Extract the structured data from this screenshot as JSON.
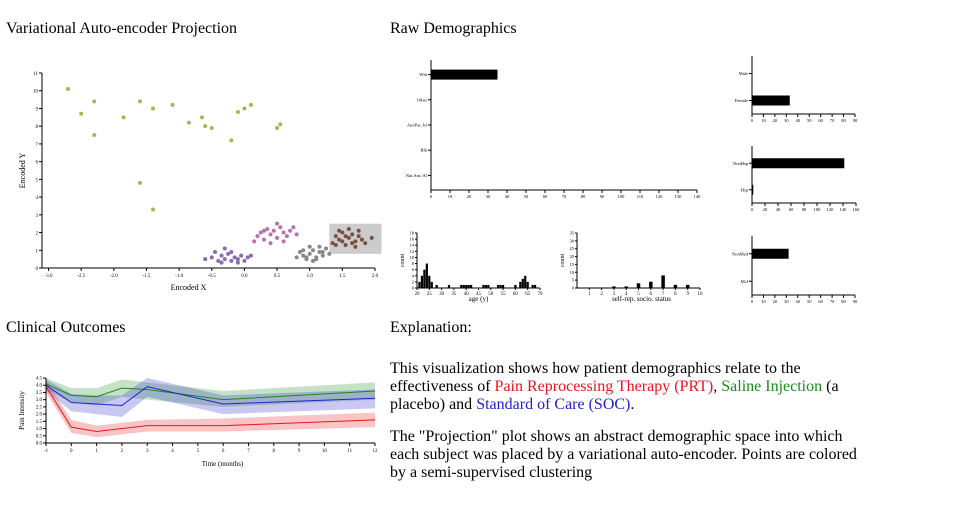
{
  "headings": {
    "vae": "Variational Auto-encoder Projection",
    "raw": "Raw Demographics",
    "clinical": "Clinical Outcomes",
    "explanation": "Explanation:"
  },
  "explanation": {
    "p1_a": "This visualization shows how patient demographics relate to the effectiveness of ",
    "prt": "Pain Reprocessing Therapy (PRT)",
    "p1_b": ", ",
    "saline": "Saline Injection",
    "p1_c": " (a placebo) and ",
    "soc": "Standard of Care (SOC)",
    "p1_d": ".",
    "p2": "The \"Projection\" plot shows an abstract demographic space into which each subject was placed by a variational auto-encoder. Points are colored by a semi-supervised clustering"
  },
  "colors": {
    "prt": "#e8141a",
    "saline": "#1a8a1a",
    "soc": "#2222cc",
    "cluster_green": "#a4b55a",
    "cluster_purple": "#8a6ab0",
    "cluster_pink": "#b870b0",
    "cluster_gray": "#888888",
    "cluster_brown": "#7a5040",
    "selection": "#cccccc"
  },
  "chart_data": [
    {
      "type": "scatter",
      "id": "vae",
      "xlabel": "Encoded X",
      "ylabel": "Encoded Y",
      "xlim": [
        -2.5,
        2.0
      ],
      "ylim": [
        0,
        11
      ],
      "xticks": [
        "-2.5",
        "-2.0",
        "-1.5",
        "-1.0",
        "-0.5",
        "0.0",
        "0.5",
        "1.0",
        "1.5",
        "2.0"
      ],
      "xtick_values": [
        -2.5,
        -2.0,
        -1.5,
        -1.0,
        -0.5,
        0.0,
        0.5,
        1.0,
        1.5,
        2.0
      ],
      "xtick_minor": [
        "-3.0",
        "-2.5",
        "-2.0",
        "-1.5",
        "-1.0",
        "-0.5",
        "0.0",
        "0.5",
        "1.0",
        "1.5",
        "2.0"
      ],
      "yticks": [
        "0",
        "1",
        "2",
        "3",
        "4",
        "5",
        "6",
        "7",
        "8",
        "9",
        "10",
        "11"
      ],
      "selection": {
        "x": [
          1.3,
          2.1
        ],
        "y": [
          0.8,
          2.5
        ]
      },
      "series": [
        {
          "color": "cluster_green",
          "points": [
            [
              -2.7,
              10.1
            ],
            [
              -2.5,
              8.7
            ],
            [
              -2.3,
              9.4
            ],
            [
              -2.3,
              7.5
            ],
            [
              -1.85,
              8.5
            ],
            [
              -1.6,
              9.4
            ],
            [
              -1.6,
              4.8
            ],
            [
              -1.4,
              9.0
            ],
            [
              -1.4,
              3.3
            ],
            [
              -1.1,
              9.2
            ],
            [
              -0.85,
              8.2
            ],
            [
              -0.65,
              8.5
            ],
            [
              -0.6,
              8.0
            ],
            [
              -0.5,
              7.9
            ],
            [
              -0.2,
              7.2
            ],
            [
              -0.1,
              8.8
            ],
            [
              0.0,
              9.0
            ],
            [
              0.1,
              9.2
            ],
            [
              0.5,
              7.9
            ],
            [
              0.55,
              8.1
            ]
          ]
        },
        {
          "color": "cluster_purple",
          "points": [
            [
              -0.5,
              0.6
            ],
            [
              -0.4,
              0.4
            ],
            [
              -0.35,
              0.7
            ],
            [
              -0.3,
              0.5
            ],
            [
              -0.25,
              0.8
            ],
            [
              -0.2,
              0.4
            ],
            [
              -0.15,
              0.6
            ],
            [
              -0.1,
              0.5
            ],
            [
              -0.05,
              0.7
            ],
            [
              0.0,
              0.4
            ],
            [
              0.05,
              0.6
            ],
            [
              -0.45,
              0.9
            ],
            [
              -0.3,
              1.1
            ],
            [
              -0.2,
              0.9
            ],
            [
              -0.1,
              0.3
            ],
            [
              -0.6,
              0.5
            ],
            [
              0.1,
              0.7
            ],
            [
              -0.35,
              0.3
            ]
          ]
        },
        {
          "color": "cluster_pink",
          "points": [
            [
              0.15,
              1.5
            ],
            [
              0.2,
              1.8
            ],
            [
              0.25,
              2.0
            ],
            [
              0.3,
              1.6
            ],
            [
              0.35,
              2.2
            ],
            [
              0.4,
              1.9
            ],
            [
              0.45,
              2.1
            ],
            [
              0.5,
              1.7
            ],
            [
              0.55,
              2.3
            ],
            [
              0.6,
              2.0
            ],
            [
              0.65,
              1.8
            ],
            [
              0.7,
              2.1
            ],
            [
              0.75,
              2.3
            ],
            [
              0.8,
              1.9
            ],
            [
              0.4,
              1.4
            ],
            [
              0.5,
              2.5
            ],
            [
              0.6,
              1.5
            ],
            [
              0.3,
              2.1
            ]
          ]
        },
        {
          "color": "cluster_gray",
          "points": [
            [
              0.8,
              0.6
            ],
            [
              0.85,
              0.9
            ],
            [
              0.9,
              0.7
            ],
            [
              0.95,
              0.5
            ],
            [
              1.0,
              0.8
            ],
            [
              1.05,
              1.0
            ],
            [
              1.1,
              0.6
            ],
            [
              1.15,
              0.9
            ],
            [
              1.2,
              0.7
            ],
            [
              1.25,
              1.1
            ],
            [
              1.0,
              1.2
            ],
            [
              0.9,
              1.0
            ],
            [
              1.1,
              0.5
            ],
            [
              1.2,
              0.9
            ],
            [
              1.3,
              0.8
            ],
            [
              0.95,
              0.6
            ],
            [
              1.05,
              0.4
            ],
            [
              1.15,
              1.2
            ]
          ]
        },
        {
          "color": "cluster_brown",
          "points": [
            [
              1.35,
              1.4
            ],
            [
              1.4,
              1.8
            ],
            [
              1.45,
              1.6
            ],
            [
              1.5,
              2.0
            ],
            [
              1.55,
              1.3
            ],
            [
              1.6,
              1.7
            ],
            [
              1.65,
              1.9
            ],
            [
              1.7,
              1.5
            ],
            [
              1.75,
              2.1
            ],
            [
              1.8,
              1.6
            ],
            [
              1.85,
              1.4
            ],
            [
              1.5,
              1.5
            ],
            [
              1.6,
              2.2
            ],
            [
              1.7,
              1.2
            ],
            [
              1.4,
              1.3
            ],
            [
              1.55,
              1.8
            ],
            [
              1.65,
              1.4
            ],
            [
              1.95,
              1.7
            ],
            [
              1.45,
              2.1
            ],
            [
              1.75,
              1.8
            ]
          ]
        }
      ]
    },
    {
      "type": "bar",
      "id": "race",
      "orientation": "horizontal",
      "categories": [
        "Wht",
        "Other",
        "Am/Pac.Isl",
        "Blk",
        "Nat.Am./Al"
      ],
      "values": [
        35,
        0,
        0,
        0,
        0
      ],
      "xlim": [
        0,
        140
      ],
      "xticks": [
        "0",
        "10",
        "20",
        "30",
        "40",
        "50",
        "60",
        "70",
        "80",
        "90",
        "100",
        "110",
        "120",
        "130",
        "140"
      ]
    },
    {
      "type": "bar",
      "id": "sex",
      "orientation": "horizontal",
      "categories": [
        "Male",
        "Female"
      ],
      "values": [
        0,
        33
      ],
      "xlim": [
        0,
        90
      ],
      "xticks": [
        "0",
        "10",
        "20",
        "30",
        "40",
        "50",
        "60",
        "70",
        "80",
        "90"
      ]
    },
    {
      "type": "bar",
      "id": "ethnicity",
      "orientation": "horizontal",
      "categories": [
        "NonHsp",
        "Hsp"
      ],
      "values": [
        142,
        2
      ],
      "xlim": [
        0,
        160
      ],
      "xticks": [
        "0",
        "20",
        "40",
        "60",
        "80",
        "100",
        "120",
        "140",
        "160"
      ]
    },
    {
      "type": "bar",
      "id": "military",
      "orientation": "horizontal",
      "categories": [
        "NonMed",
        "Mcl"
      ],
      "values": [
        32,
        0
      ],
      "xlim": [
        0,
        90
      ],
      "xticks": [
        "0",
        "10",
        "20",
        "30",
        "40",
        "50",
        "60",
        "70",
        "80",
        "90"
      ]
    },
    {
      "type": "bar",
      "id": "age",
      "xlabel": "age (y)",
      "ylabel": "count",
      "xlim": [
        20,
        70
      ],
      "ylim": [
        0,
        18
      ],
      "xticks": [
        "20",
        "25",
        "30",
        "35",
        "40",
        "45",
        "50",
        "55",
        "60",
        "65",
        "70"
      ],
      "yticks": [
        "0",
        "2",
        "4",
        "6",
        "8",
        "10",
        "12",
        "14",
        "16",
        "18"
      ],
      "bins": [
        [
          21,
          2
        ],
        [
          22,
          4
        ],
        [
          23,
          6
        ],
        [
          24,
          8
        ],
        [
          25,
          4
        ],
        [
          26,
          2
        ],
        [
          27,
          0
        ],
        [
          28,
          1
        ],
        [
          29,
          0
        ],
        [
          33,
          1
        ],
        [
          38,
          1
        ],
        [
          39,
          1
        ],
        [
          40,
          1
        ],
        [
          41,
          1
        ],
        [
          42,
          1
        ],
        [
          47,
          1
        ],
        [
          48,
          1
        ],
        [
          49,
          1
        ],
        [
          53,
          1
        ],
        [
          54,
          1
        ],
        [
          55,
          1
        ],
        [
          60,
          1
        ],
        [
          61,
          0
        ],
        [
          62,
          2
        ],
        [
          63,
          3
        ],
        [
          64,
          4
        ],
        [
          65,
          2
        ],
        [
          67,
          1
        ],
        [
          68,
          1
        ]
      ]
    },
    {
      "type": "bar",
      "id": "ses",
      "xlabel": "self-rep. socio. status",
      "ylabel": "count",
      "xlim": [
        0,
        10
      ],
      "ylim": [
        0,
        35
      ],
      "xticks": [
        "1",
        "2",
        "3",
        "4",
        "5",
        "6",
        "7",
        "8",
        "9",
        "10"
      ],
      "yticks": [
        "0",
        "5",
        "10",
        "15",
        "20",
        "25",
        "30",
        "35"
      ],
      "bins": [
        [
          3,
          1
        ],
        [
          4,
          1
        ],
        [
          5,
          3
        ],
        [
          6,
          4
        ],
        [
          7,
          8
        ],
        [
          8,
          2
        ],
        [
          9,
          2
        ]
      ]
    },
    {
      "type": "line",
      "id": "outcomes",
      "xlabel": "Time (months)",
      "ylabel": "Pain Intensity",
      "xlim": [
        -1,
        12
      ],
      "ylim": [
        0,
        4.5
      ],
      "xticks": [
        "-1",
        "0",
        "1",
        "2",
        "3",
        "4",
        "5",
        "6",
        "7",
        "8",
        "9",
        "10",
        "11",
        "12"
      ],
      "yticks": [
        "0.0",
        "0.5",
        "1.0",
        "1.5",
        "2.0",
        "2.5",
        "3.0",
        "3.5",
        "4.0",
        "4.5"
      ],
      "x": [
        -1,
        0,
        1,
        2,
        3,
        6,
        12
      ],
      "series": [
        {
          "color": "saline",
          "values": [
            4.1,
            3.3,
            3.2,
            3.8,
            3.7,
            3.0,
            3.6
          ],
          "lower": [
            3.7,
            2.8,
            2.6,
            3.2,
            3.0,
            2.5,
            3.0
          ],
          "upper": [
            4.5,
            3.8,
            3.8,
            4.4,
            4.2,
            3.6,
            4.2
          ]
        },
        {
          "color": "soc",
          "values": [
            4.0,
            2.8,
            2.7,
            2.6,
            3.9,
            2.7,
            3.1
          ],
          "lower": [
            3.6,
            2.2,
            2.0,
            1.8,
            3.2,
            2.0,
            2.4
          ],
          "upper": [
            4.4,
            3.4,
            3.3,
            3.3,
            4.5,
            3.3,
            3.7
          ]
        },
        {
          "color": "prt",
          "values": [
            3.9,
            1.1,
            0.8,
            1.0,
            1.2,
            1.2,
            1.6
          ],
          "lower": [
            3.5,
            0.7,
            0.4,
            0.6,
            0.8,
            0.8,
            1.1
          ],
          "upper": [
            4.3,
            1.6,
            1.2,
            1.4,
            1.6,
            1.7,
            2.1
          ]
        }
      ]
    }
  ]
}
